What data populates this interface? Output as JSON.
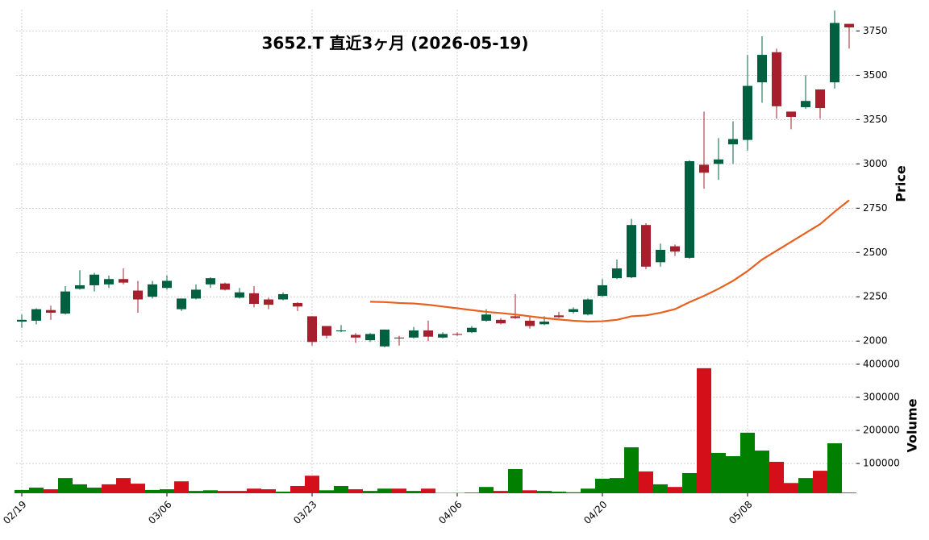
{
  "chart_data": {
    "type": "candlestick",
    "title": "3652.T  直近3ヶ月  (2026-05-19)",
    "categories": [
      "02/19",
      null,
      null,
      null,
      null,
      null,
      null,
      null,
      null,
      null,
      "03/06",
      null,
      null,
      null,
      null,
      null,
      null,
      null,
      null,
      null,
      "03/23",
      null,
      null,
      null,
      null,
      null,
      null,
      null,
      null,
      null,
      "04/06",
      null,
      null,
      null,
      null,
      null,
      null,
      null,
      null,
      null,
      "04/20",
      null,
      null,
      null,
      null,
      null,
      null,
      null,
      null,
      null,
      "05/08",
      null,
      null,
      null,
      null,
      null,
      null,
      null
    ],
    "open": [
      2110,
      2115,
      2175,
      2155,
      2295,
      2315,
      2320,
      2350,
      2285,
      2250,
      2300,
      2180,
      2240,
      2320,
      2325,
      2245,
      2270,
      2235,
      2235,
      2215,
      2140,
      2085,
      2055,
      2035,
      2005,
      1970,
      2020,
      2020,
      2060,
      2020,
      2040,
      2050,
      2115,
      2120,
      2140,
      2115,
      2095,
      2145,
      2165,
      2150,
      2255,
      2355,
      2360,
      2655,
      2445,
      2535,
      2470,
      2995,
      3000,
      3110,
      3135,
      3460,
      3630,
      3295,
      3320,
      3420,
      3460,
      3790
    ],
    "high": [
      2150,
      2185,
      2200,
      2310,
      2400,
      2385,
      2370,
      2410,
      2340,
      2340,
      2370,
      2240,
      2320,
      2360,
      2330,
      2300,
      2310,
      2245,
      2275,
      2220,
      2140,
      2085,
      2090,
      2045,
      2045,
      2065,
      2030,
      2080,
      2115,
      2050,
      2050,
      2085,
      2180,
      2130,
      2265,
      2135,
      2140,
      2165,
      2190,
      2240,
      2350,
      2460,
      2690,
      2665,
      2550,
      2545,
      3020,
      3295,
      3145,
      3240,
      3615,
      3720,
      3650,
      3295,
      3500,
      3420,
      3865,
      3790
    ],
    "low": [
      2075,
      2095,
      2120,
      2150,
      2290,
      2280,
      2300,
      2320,
      2160,
      2240,
      2290,
      2170,
      2235,
      2300,
      2285,
      2240,
      2190,
      2180,
      2230,
      2170,
      1975,
      2015,
      2050,
      1990,
      1995,
      1965,
      1975,
      2015,
      2000,
      2015,
      2030,
      2045,
      2110,
      2095,
      2125,
      2070,
      2090,
      2130,
      2155,
      2145,
      2250,
      2350,
      2355,
      2405,
      2420,
      2480,
      2465,
      2860,
      2910,
      3000,
      3075,
      3345,
      3255,
      3195,
      3310,
      3255,
      3425,
      3650
    ],
    "close": [
      2120,
      2180,
      2160,
      2280,
      2315,
      2375,
      2350,
      2330,
      2235,
      2320,
      2340,
      2240,
      2290,
      2355,
      2290,
      2275,
      2210,
      2205,
      2265,
      2195,
      1995,
      2030,
      2060,
      2020,
      2040,
      2065,
      2015,
      2060,
      2025,
      2040,
      2035,
      2075,
      2150,
      2100,
      2130,
      2085,
      2110,
      2135,
      2180,
      2235,
      2315,
      2410,
      2655,
      2420,
      2515,
      2505,
      3015,
      2950,
      3025,
      3140,
      3440,
      3615,
      3325,
      3265,
      3355,
      3315,
      3795,
      3770
    ],
    "up_color": "#00603f",
    "down_color": "#a51f2d",
    "ylabel": "Price",
    "ylim": [
      1960,
      3870
    ],
    "yticks": [
      2000,
      2250,
      2500,
      2750,
      3000,
      3250,
      3500,
      3750
    ],
    "grid": true,
    "ma": {
      "color": "#e8601c",
      "values": [
        null,
        null,
        null,
        null,
        null,
        null,
        null,
        null,
        null,
        null,
        null,
        null,
        null,
        null,
        null,
        null,
        null,
        null,
        null,
        null,
        null,
        null,
        null,
        null,
        2222,
        2220,
        2215,
        2212,
        2205,
        2195,
        2185,
        2175,
        2165,
        2158,
        2150,
        2140,
        2130,
        2122,
        2115,
        2110,
        2112,
        2120,
        2140,
        2145,
        2160,
        2180,
        2220,
        2255,
        2295,
        2340,
        2395,
        2460,
        2510,
        2560,
        2610,
        2660,
        2730,
        2795
      ]
    },
    "volume": {
      "ylabel": "Volume",
      "ylim": [
        10000,
        412000
      ],
      "yticks": [
        100000,
        200000,
        300000,
        400000
      ],
      "values": [
        20000,
        27000,
        22000,
        56000,
        37000,
        27000,
        37000,
        56000,
        39000,
        20000,
        22000,
        46000,
        17000,
        19000,
        17000,
        17000,
        24000,
        22000,
        15000,
        32000,
        63000,
        19000,
        32000,
        22000,
        17000,
        24000,
        24000,
        17000,
        24000,
        11000,
        11000,
        12000,
        29000,
        17000,
        83000,
        19000,
        17000,
        15000,
        13000,
        24000,
        54000,
        56000,
        149000,
        76000,
        37000,
        29000,
        71000,
        388000,
        132000,
        122000,
        193000,
        139000,
        105000,
        41000,
        56000,
        78000,
        161000,
        12000
      ],
      "colors": [
        "#007f00",
        "#007f00",
        "#d40f1a",
        "#007f00",
        "#007f00",
        "#007f00",
        "#d40f1a",
        "#d40f1a",
        "#d40f1a",
        "#007f00",
        "#007f00",
        "#d40f1a",
        "#007f00",
        "#007f00",
        "#d40f1a",
        "#d40f1a",
        "#d40f1a",
        "#d40f1a",
        "#007f00",
        "#d40f1a",
        "#d40f1a",
        "#007f00",
        "#007f00",
        "#d40f1a",
        "#007f00",
        "#007f00",
        "#d40f1a",
        "#007f00",
        "#d40f1a",
        "#007f00",
        "#d40f1a",
        "#007f00",
        "#007f00",
        "#d40f1a",
        "#007f00",
        "#d40f1a",
        "#007f00",
        "#007f00",
        "#007f00",
        "#007f00",
        "#007f00",
        "#007f00",
        "#007f00",
        "#d40f1a",
        "#007f00",
        "#d40f1a",
        "#007f00",
        "#d40f1a",
        "#007f00",
        "#007f00",
        "#007f00",
        "#007f00",
        "#d40f1a",
        "#d40f1a",
        "#007f00",
        "#d40f1a",
        "#007f00",
        "#d40f1a"
      ]
    }
  }
}
